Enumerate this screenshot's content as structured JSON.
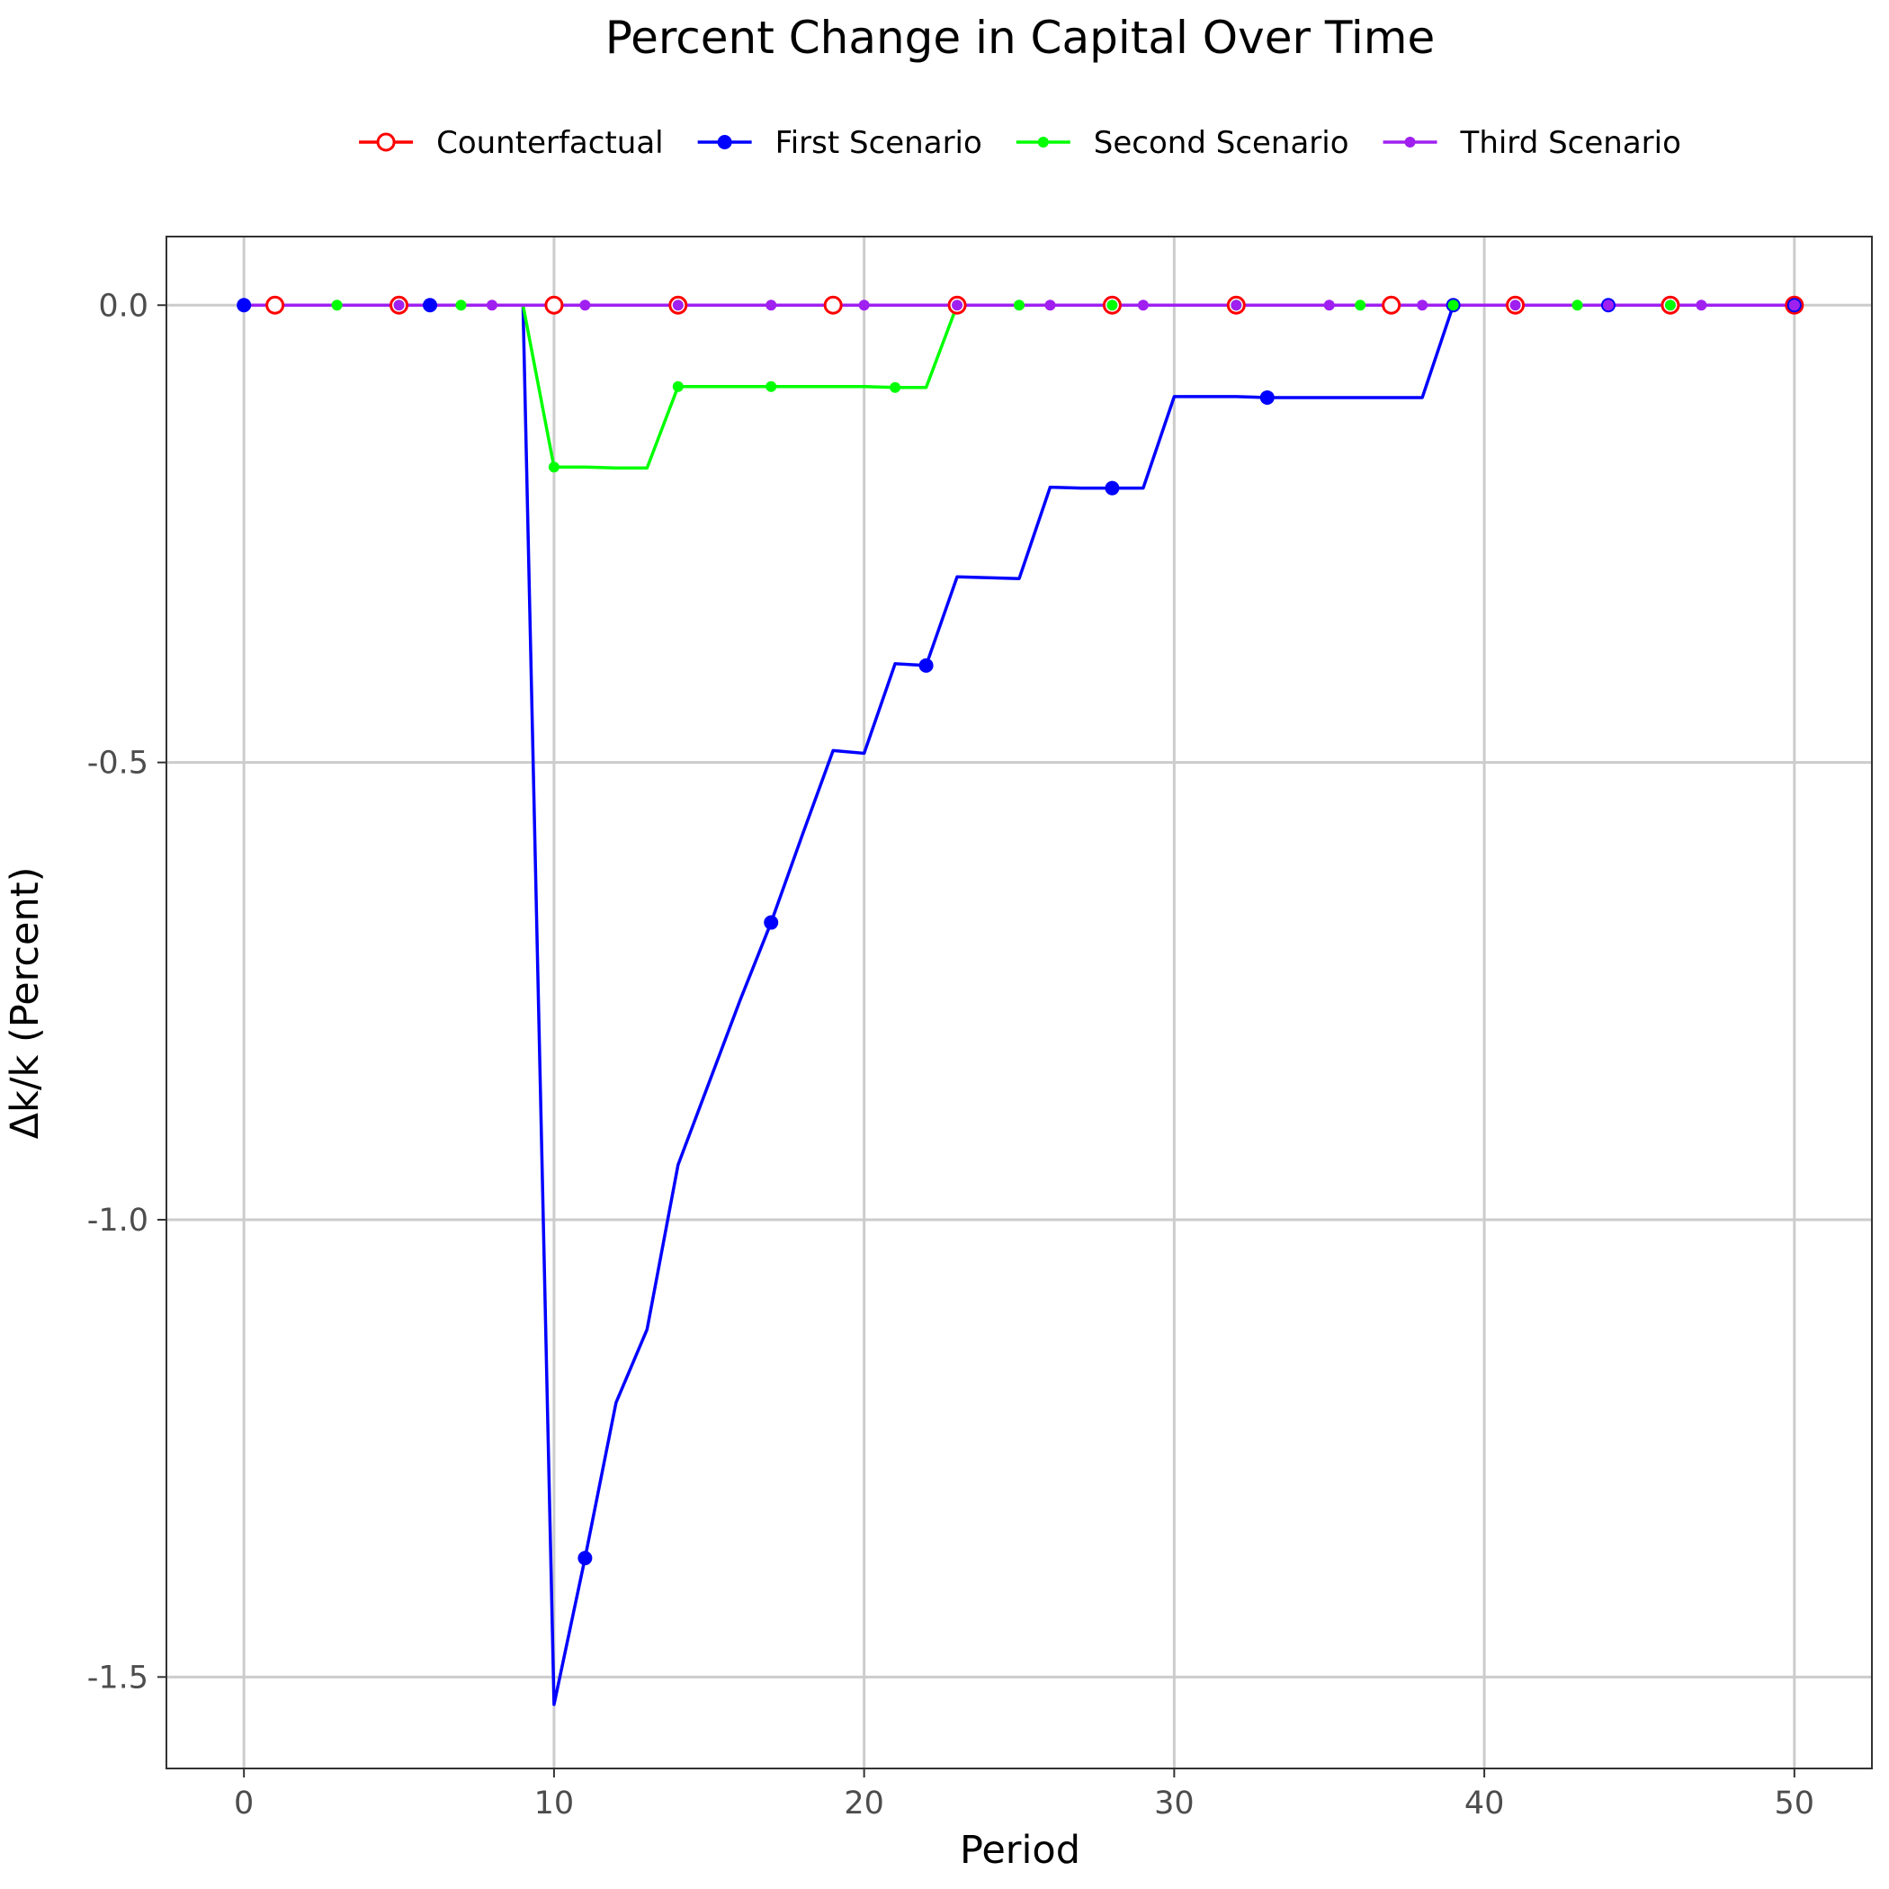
{
  "chart_data": {
    "type": "line",
    "title": "Percent Change in Capital Over Time",
    "xlabel": "Period",
    "ylabel": "Δk/k (Percent)",
    "xlim": [
      -2.5,
      52.5
    ],
    "ylim": [
      -1.6,
      0.075
    ],
    "x_ticks": [
      0,
      10,
      20,
      30,
      40,
      50
    ],
    "x_tick_labels": [
      "0",
      "10",
      "20",
      "30",
      "40",
      "50"
    ],
    "y_ticks": [
      0.0,
      -0.5,
      -1.0,
      -1.5
    ],
    "y_tick_labels": [
      "0.0",
      "-0.5",
      "-1.0",
      "-1.5"
    ],
    "grid": true,
    "legend_position": "top",
    "series": [
      {
        "name": "Counterfactual",
        "color": "#ff0000",
        "marker": "open-circle",
        "x": [
          0,
          1,
          2,
          3,
          4,
          5,
          6,
          7,
          8,
          9,
          10,
          11,
          12,
          13,
          14,
          15,
          16,
          17,
          18,
          19,
          20,
          21,
          22,
          23,
          24,
          25,
          26,
          27,
          28,
          29,
          30,
          31,
          32,
          33,
          34,
          35,
          36,
          37,
          38,
          39,
          40,
          41,
          42,
          43,
          44,
          45,
          46,
          47,
          48,
          49,
          50
        ],
        "y": [
          0,
          0,
          0,
          0,
          0,
          0,
          0,
          0,
          0,
          0,
          0,
          0,
          0,
          0,
          0,
          0,
          0,
          0,
          0,
          0,
          0,
          0,
          0,
          0,
          0,
          0,
          0,
          0,
          0,
          0,
          0,
          0,
          0,
          0,
          0,
          0,
          0,
          0,
          0,
          0,
          0,
          0,
          0,
          0,
          0,
          0,
          0,
          0,
          0,
          0,
          0
        ],
        "marker_x": [
          1,
          5,
          10,
          14,
          19,
          23,
          28,
          32,
          37,
          41,
          46,
          50
        ]
      },
      {
        "name": "First Scenario",
        "color": "#0000ff",
        "marker": "filled-circle",
        "x": [
          0,
          1,
          2,
          3,
          4,
          5,
          6,
          7,
          8,
          9,
          10,
          11,
          12,
          13,
          14,
          15,
          16,
          17,
          18,
          19,
          20,
          21,
          22,
          23,
          24,
          25,
          26,
          27,
          28,
          29,
          30,
          31,
          32,
          33,
          34,
          35,
          36,
          37,
          38,
          39,
          40,
          41,
          42,
          43,
          44,
          45,
          46,
          47,
          48,
          49,
          50
        ],
        "y": [
          0,
          0,
          0,
          0,
          0,
          0,
          0,
          0,
          0,
          0,
          -1.53,
          -1.37,
          -1.2,
          -1.12,
          -0.94,
          -0.85,
          -0.76,
          -0.675,
          -0.58,
          -0.487,
          -0.49,
          -0.392,
          -0.394,
          -0.297,
          -0.298,
          -0.299,
          -0.199,
          -0.2,
          -0.2,
          -0.2,
          -0.1,
          -0.1,
          -0.1,
          -0.101,
          -0.101,
          -0.101,
          -0.101,
          -0.101,
          -0.101,
          0,
          0,
          0,
          0,
          0,
          0,
          0,
          0,
          0,
          0,
          0,
          0
        ],
        "marker_x": [
          0,
          6,
          11,
          17,
          22,
          28,
          33,
          39,
          44,
          50
        ]
      },
      {
        "name": "Second Scenario",
        "color": "#00ff00",
        "marker": "small-filled-circle",
        "x": [
          0,
          1,
          2,
          3,
          4,
          5,
          6,
          7,
          8,
          9,
          10,
          11,
          12,
          13,
          14,
          15,
          16,
          17,
          18,
          19,
          20,
          21,
          22,
          23,
          24,
          25,
          26,
          27,
          28,
          29,
          30,
          31,
          32,
          33,
          34,
          35,
          36,
          37,
          38,
          39,
          40,
          41,
          42,
          43,
          44,
          45,
          46,
          47,
          48,
          49,
          50
        ],
        "y": [
          0,
          0,
          0,
          0,
          0,
          0,
          0,
          0,
          0,
          0,
          -0.177,
          -0.177,
          -0.178,
          -0.178,
          -0.089,
          -0.089,
          -0.089,
          -0.089,
          -0.089,
          -0.089,
          -0.089,
          -0.09,
          -0.09,
          0,
          0,
          0,
          0,
          0,
          0,
          0,
          0,
          0,
          0,
          0,
          0,
          0,
          0,
          0,
          0,
          0,
          0,
          0,
          0,
          0,
          0,
          0,
          0,
          0,
          0,
          0,
          0
        ],
        "marker_x": [
          3,
          7,
          10,
          14,
          17,
          21,
          25,
          28,
          32,
          36,
          39,
          43,
          46,
          50
        ]
      },
      {
        "name": "Third Scenario",
        "color": "#a020f0",
        "marker": "small-filled-circle",
        "x": [
          0,
          1,
          2,
          3,
          4,
          5,
          6,
          7,
          8,
          9,
          10,
          11,
          12,
          13,
          14,
          15,
          16,
          17,
          18,
          19,
          20,
          21,
          22,
          23,
          24,
          25,
          26,
          27,
          28,
          29,
          30,
          31,
          32,
          33,
          34,
          35,
          36,
          37,
          38,
          39,
          40,
          41,
          42,
          43,
          44,
          45,
          46,
          47,
          48,
          49,
          50
        ],
        "y": [
          0,
          0,
          0,
          0,
          0,
          0,
          0,
          0,
          0,
          0,
          0,
          0,
          0,
          0,
          0,
          0,
          0,
          0,
          0,
          0,
          0,
          0,
          0,
          0,
          0,
          0,
          0,
          0,
          0,
          0,
          0,
          0,
          0,
          0,
          0,
          0,
          0,
          0,
          0,
          0,
          0,
          0,
          0,
          0,
          0,
          0,
          0,
          0,
          0,
          0,
          0
        ],
        "marker_x": [
          5,
          8,
          11,
          14,
          17,
          20,
          23,
          26,
          29,
          32,
          35,
          38,
          41,
          44,
          47,
          50
        ]
      }
    ]
  }
}
